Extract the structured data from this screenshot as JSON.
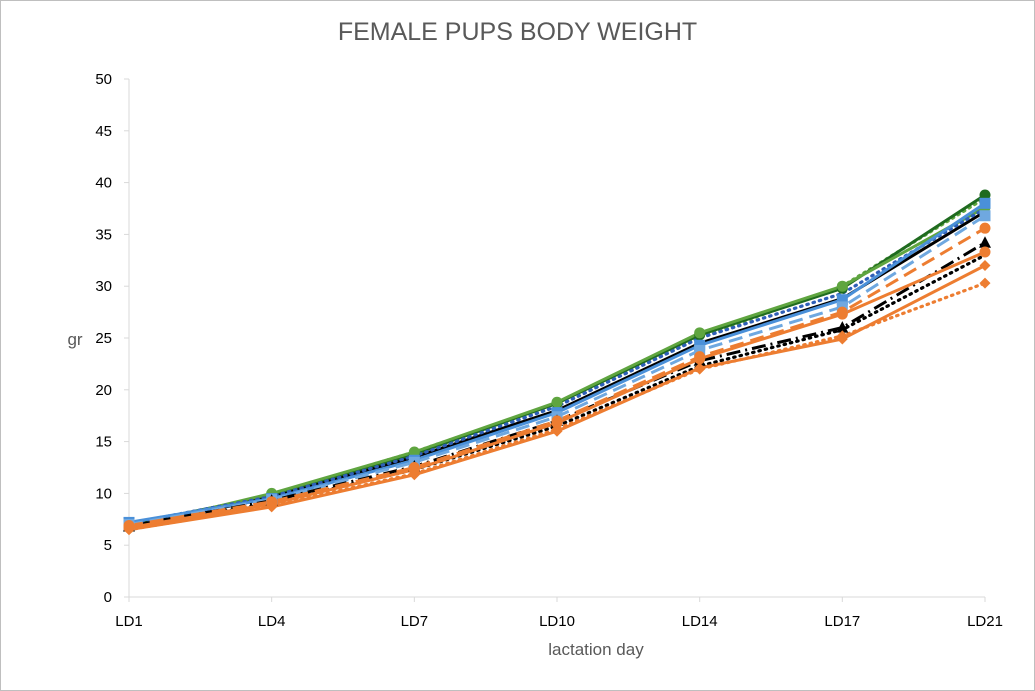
{
  "chart_data": {
    "type": "line",
    "title": "FEMALE PUPS BODY WEIGHT",
    "xlabel": "lactation day",
    "ylabel": "gr",
    "categories": [
      "LD1",
      "LD4",
      "LD7",
      "LD10",
      "LD14",
      "LD17",
      "LD21"
    ],
    "y_ticks": [
      "0",
      "5",
      "10",
      "15",
      "20",
      "25",
      "30",
      "35",
      "40",
      "45",
      "50"
    ],
    "ylim": [
      0,
      50
    ],
    "grid": false,
    "legend": "none",
    "series": [
      {
        "color": "#5fa540",
        "dash": "dot",
        "marker": "none",
        "values": [
          6.8,
          9.9,
          14.0,
          18.7,
          25.1,
          30.0,
          38.5
        ]
      },
      {
        "color": "#1f6b1f",
        "dash": "solid",
        "marker": "circle",
        "values": [
          7.0,
          9.8,
          13.8,
          18.7,
          25.3,
          29.8,
          38.8
        ]
      },
      {
        "color": "#5fa540",
        "dash": "solid",
        "marker": "circle",
        "values": [
          6.7,
          10.0,
          14.0,
          18.8,
          25.5,
          30.0,
          37.6
        ]
      },
      {
        "color": "#000000",
        "dash": "solid",
        "marker": "none",
        "values": [
          6.8,
          9.6,
          13.5,
          18.0,
          24.5,
          28.8,
          37.2
        ]
      },
      {
        "color": "#2e5fb8",
        "dash": "dot",
        "marker": "none",
        "values": [
          7.1,
          9.7,
          13.6,
          18.4,
          25.0,
          29.3,
          37.5
        ]
      },
      {
        "color": "#4a90d9",
        "dash": "solid",
        "marker": "square",
        "values": [
          7.2,
          9.5,
          13.2,
          17.8,
          24.3,
          28.7,
          38.0
        ]
      },
      {
        "color": "#6fa8e0",
        "dash": "dash",
        "marker": "square",
        "values": [
          7.0,
          9.4,
          13.0,
          17.4,
          23.8,
          28.0,
          36.8
        ]
      },
      {
        "color": "#000000",
        "dash": "dashdot",
        "marker": "triangle",
        "values": [
          6.8,
          9.3,
          12.6,
          17.0,
          22.8,
          26.0,
          34.2
        ]
      },
      {
        "color": "#000000",
        "dash": "dot",
        "marker": "none",
        "values": [
          6.6,
          9.1,
          12.3,
          16.5,
          22.3,
          25.8,
          33.0
        ]
      },
      {
        "color": "#ed7d31",
        "dash": "dash",
        "marker": "circle",
        "values": [
          6.9,
          9.2,
          12.5,
          17.0,
          23.2,
          27.5,
          35.6
        ]
      },
      {
        "color": "#ed7d31",
        "dash": "solid",
        "marker": "circle",
        "values": [
          6.7,
          9.0,
          12.3,
          16.8,
          23.0,
          27.3,
          33.3
        ]
      },
      {
        "color": "#ed7d31",
        "dash": "dot",
        "marker": "diamond",
        "values": [
          6.5,
          8.8,
          11.9,
          16.2,
          22.0,
          25.2,
          30.3
        ]
      },
      {
        "color": "#ed7d31",
        "dash": "solid",
        "marker": "diamond",
        "values": [
          6.5,
          8.7,
          11.8,
          16.0,
          22.1,
          24.9,
          32.0
        ]
      }
    ]
  }
}
